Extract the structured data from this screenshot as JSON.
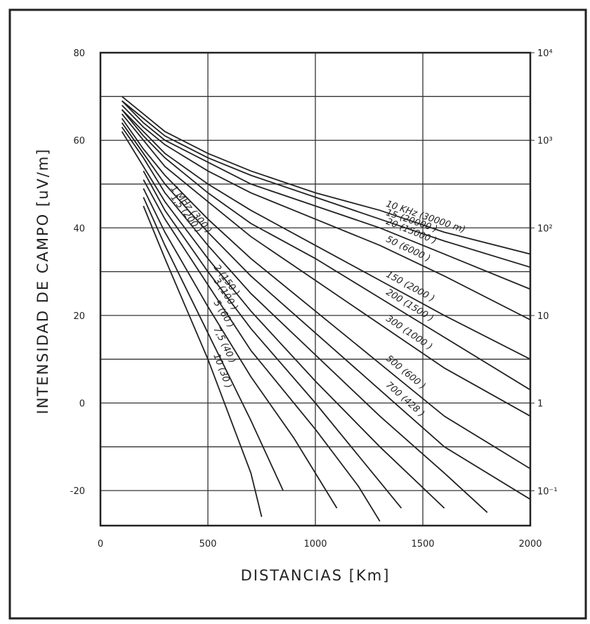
{
  "chart_data": {
    "type": "line",
    "xlabel": "DISTANCIAS [Km]",
    "ylabel": "INTENSIDAD DE CAMPO [uV/m]",
    "xlim": [
      0,
      2000
    ],
    "xticks": [
      0,
      500,
      1000,
      1500,
      2000
    ],
    "ylim": [
      -28,
      80
    ],
    "yticks": [
      -20,
      0,
      20,
      40,
      60,
      80
    ],
    "y2lim": [
      0.04,
      10000
    ],
    "y2log": true,
    "y2ticks": [
      {
        "value": 0.1,
        "label": "10⁻¹"
      },
      1,
      10,
      {
        "value": 100,
        "label": "10²"
      },
      {
        "value": 1000,
        "label": "10³"
      },
      {
        "value": 10000,
        "label": "10⁴"
      }
    ],
    "grid": true,
    "color": "#222222",
    "series": [
      {
        "name": "10 KHz (30000 m)",
        "x": [
          100,
          200,
          300,
          500,
          700,
          1000,
          1300,
          1600,
          2000
        ],
        "values": [
          70,
          66,
          62,
          57,
          53,
          48,
          44,
          39,
          34
        ]
      },
      {
        "name": "15 (20000 )",
        "x": [
          100,
          200,
          300,
          500,
          700,
          1000,
          1300,
          1600,
          2000
        ],
        "values": [
          69,
          65,
          61,
          56,
          52,
          47,
          42,
          37,
          31
        ]
      },
      {
        "name": "20 (15000 )",
        "x": [
          100,
          200,
          300,
          500,
          700,
          1000,
          1300,
          1600,
          2000
        ],
        "values": [
          69,
          64,
          60,
          55,
          50,
          45,
          40,
          34,
          26
        ]
      },
      {
        "name": "50 (6000 )",
        "x": [
          100,
          200,
          300,
          500,
          700,
          1000,
          1300,
          1600,
          2000
        ],
        "values": [
          68,
          63,
          59,
          53,
          48,
          42,
          36,
          29,
          19
        ]
      },
      {
        "name": "150 (2000 )",
        "x": [
          100,
          200,
          300,
          500,
          700,
          1000,
          1300,
          1600,
          2000
        ],
        "values": [
          67,
          62,
          57,
          50,
          44,
          36,
          28,
          20,
          10
        ]
      },
      {
        "name": "200 (1500 )",
        "x": [
          100,
          200,
          300,
          500,
          700,
          1000,
          1300,
          1600,
          2000
        ],
        "values": [
          67,
          61,
          56,
          48,
          41,
          33,
          24,
          15,
          3
        ]
      },
      {
        "name": "300 (1000 )",
        "x": [
          100,
          200,
          300,
          500,
          700,
          1000,
          1300,
          1600,
          2000
        ],
        "values": [
          66,
          60,
          54,
          46,
          38,
          28,
          18,
          8,
          -3
        ]
      },
      {
        "name": "500 (600 )",
        "x": [
          100,
          200,
          300,
          500,
          700,
          1000,
          1300,
          1600,
          2000
        ],
        "values": [
          65,
          58,
          52,
          42,
          33,
          21,
          9,
          -3,
          -15
        ]
      },
      {
        "name": "700 (428 )",
        "x": [
          100,
          200,
          300,
          500,
          700,
          1000,
          1300,
          1600,
          2000
        ],
        "values": [
          64,
          57,
          50,
          39,
          29,
          16,
          3,
          -10,
          -22
        ]
      },
      {
        "name": "1 MHz (300 )",
        "x": [
          100,
          200,
          300,
          500,
          700,
          1000,
          1300,
          1600,
          1800
        ],
        "values": [
          63,
          56,
          48,
          36,
          25,
          11,
          -3,
          -16,
          -25
        ]
      },
      {
        "name": "1,5 (200 )",
        "x": [
          100,
          200,
          300,
          500,
          700,
          1000,
          1300,
          1600
        ],
        "values": [
          62,
          54,
          46,
          33,
          21,
          5,
          -10,
          -24
        ]
      },
      {
        "name": "2 (150 )",
        "x": [
          200,
          300,
          500,
          700,
          1000,
          1300,
          1400
        ],
        "values": [
          53,
          44,
          30,
          17,
          0,
          -18,
          -24
        ]
      },
      {
        "name": "3 (100 )",
        "x": [
          200,
          300,
          500,
          700,
          1000,
          1200,
          1300
        ],
        "values": [
          51,
          42,
          27,
          12,
          -6,
          -19,
          -27
        ]
      },
      {
        "name": "5 (60 )",
        "x": [
          200,
          300,
          500,
          700,
          900,
          1100
        ],
        "values": [
          49,
          39,
          22,
          6,
          -8,
          -24
        ]
      },
      {
        "name": "7,5 (40 )",
        "x": [
          200,
          300,
          500,
          700,
          850
        ],
        "values": [
          47,
          36,
          16,
          -4,
          -20
        ]
      },
      {
        "name": "10 (30 )",
        "x": [
          200,
          300,
          500,
          700,
          750
        ],
        "values": [
          45,
          33,
          10,
          -16,
          -26
        ]
      }
    ]
  }
}
